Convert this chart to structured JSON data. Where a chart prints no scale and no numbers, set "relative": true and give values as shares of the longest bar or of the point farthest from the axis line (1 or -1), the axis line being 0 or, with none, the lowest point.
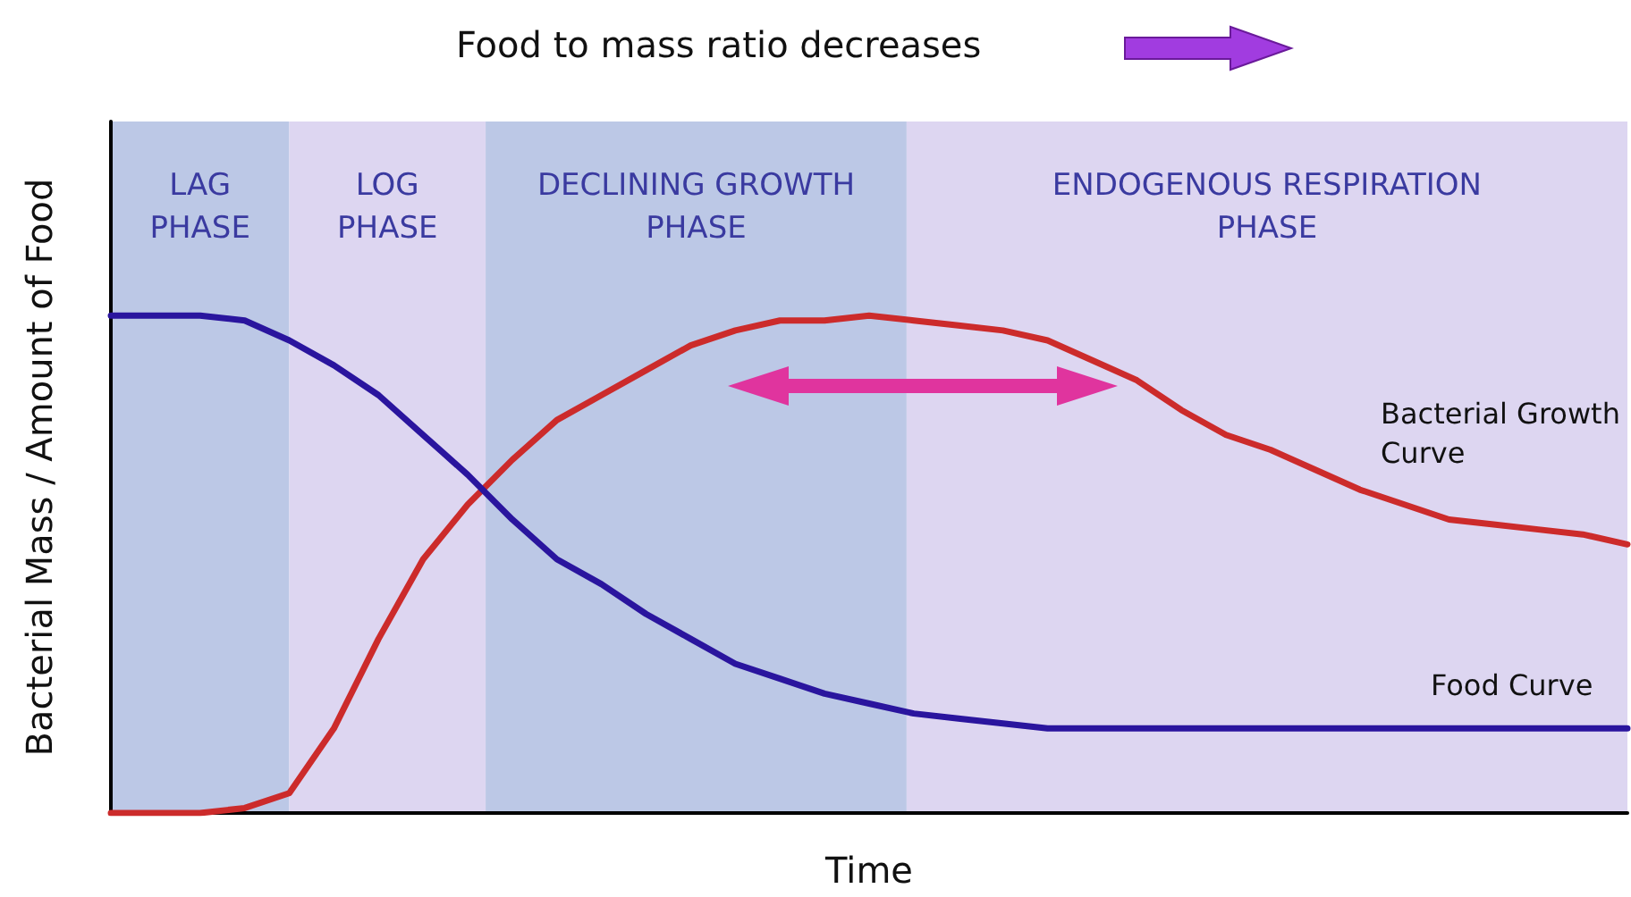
{
  "chart_data": {
    "type": "line",
    "title": "Food to mass ratio decreases",
    "xlabel": "Time",
    "ylabel": "Bacterial Mass / Amount of Food",
    "relative": true,
    "tick_labels": false,
    "marker": "none",
    "categories": [
      null,
      null,
      null,
      null,
      null,
      null,
      null,
      null,
      null,
      null,
      null,
      null,
      null,
      null,
      null,
      null,
      null,
      null,
      null,
      null,
      null,
      null,
      null,
      null,
      null,
      null,
      null,
      null,
      null,
      null,
      null,
      null,
      null,
      null,
      null
    ],
    "series": [
      {
        "name": "Bacterial Growth Curve",
        "color": "#cc2b2b",
        "values": [
          0,
          0,
          0,
          0.01,
          0.04,
          0.17,
          0.35,
          0.51,
          0.62,
          0.71,
          0.79,
          0.84,
          0.89,
          0.94,
          0.97,
          0.99,
          0.99,
          1.0,
          0.99,
          0.98,
          0.97,
          0.95,
          0.91,
          0.87,
          0.81,
          0.76,
          0.73,
          0.69,
          0.65,
          0.62,
          0.59,
          0.58,
          0.57,
          0.56,
          0.54
        ]
      },
      {
        "name": "Food Curve",
        "color": "#2a159e",
        "values": [
          1,
          1,
          1,
          0.99,
          0.95,
          0.9,
          0.84,
          0.76,
          0.68,
          0.59,
          0.51,
          0.46,
          0.4,
          0.35,
          0.3,
          0.27,
          0.24,
          0.22,
          0.2,
          0.19,
          0.18,
          0.17,
          0.17,
          0.17,
          0.17,
          0.17,
          0.17,
          0.17,
          0.17,
          0.17,
          0.17,
          0.17,
          0.17,
          0.17,
          0.17
        ]
      }
    ],
    "annotations": [
      "LAG\nPHASE",
      "LOG\nPHASE",
      "DECLINING GROWTH\nPHASE",
      "ENDOGENOUS RESPIRATION\nPHASE"
    ]
  }
}
